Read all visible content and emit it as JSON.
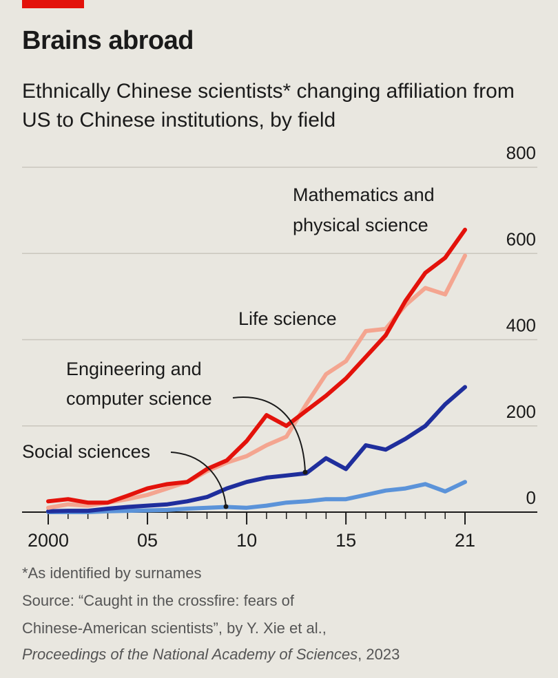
{
  "title": "Brains abroad",
  "subtitle": "Ethnically Chinese scientists* changing affiliation from US to Chinese institutions, by field",
  "footnote": "*As identified by surnames",
  "source_line1": "Source: “Caught in the crossfire: fears of",
  "source_line2": "Chinese-American scientists”, by Y. Xie et al.,",
  "source_journal": "Proceedings of the National Academy of Sciences",
  "source_year": ", 2023",
  "colors": {
    "brand_red": "#e3120b",
    "math": "#e3120b",
    "life": "#f4a590",
    "engineering": "#1f2e9c",
    "social": "#5b93d9"
  },
  "chart_data": {
    "type": "line",
    "x": [
      2000,
      2001,
      2002,
      2003,
      2004,
      2005,
      2006,
      2007,
      2008,
      2009,
      2010,
      2011,
      2012,
      2013,
      2014,
      2015,
      2016,
      2017,
      2018,
      2019,
      2020,
      2021
    ],
    "x_tick_values": [
      2000,
      2005,
      2010,
      2015,
      2021
    ],
    "x_tick_labels": [
      "2000",
      "05",
      "10",
      "15",
      "21"
    ],
    "ylim": [
      0,
      800
    ],
    "y_ticks": [
      0,
      200,
      400,
      600,
      800
    ],
    "y_tick_labels": [
      "0",
      "200",
      "400",
      "600",
      "800"
    ],
    "grid": true,
    "series": [
      {
        "name": "Life science",
        "key": "life",
        "values": [
          10,
          18,
          15,
          22,
          30,
          40,
          55,
          70,
          95,
          115,
          130,
          155,
          175,
          250,
          320,
          350,
          420,
          425,
          480,
          520,
          505,
          595
        ]
      },
      {
        "name": "Mathematics and physical science",
        "key": "math",
        "values": [
          25,
          30,
          22,
          22,
          38,
          55,
          65,
          70,
          100,
          120,
          165,
          225,
          200,
          235,
          270,
          310,
          360,
          410,
          490,
          555,
          590,
          655
        ]
      },
      {
        "name": "Engineering and computer science",
        "key": "engineering",
        "values": [
          2,
          3,
          3,
          8,
          12,
          15,
          18,
          25,
          35,
          55,
          70,
          80,
          85,
          90,
          125,
          100,
          155,
          145,
          170,
          200,
          250,
          290
        ]
      },
      {
        "name": "Social sciences",
        "key": "social",
        "values": [
          0,
          0,
          0,
          2,
          3,
          4,
          5,
          8,
          10,
          12,
          10,
          15,
          22,
          25,
          30,
          30,
          40,
          50,
          55,
          65,
          48,
          70
        ]
      }
    ],
    "labels": {
      "math_line1": "Mathematics and",
      "math_line2": "physical science",
      "life": "Life science",
      "eng_line1": "Engineering and",
      "eng_line2": "computer science",
      "social": "Social sciences"
    }
  }
}
